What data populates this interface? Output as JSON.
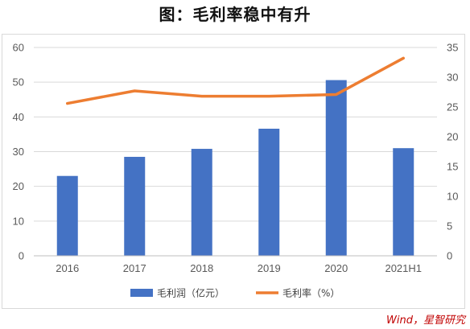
{
  "title": "图：毛利率稳中有升",
  "source": "Wind，星智研究",
  "chart_data": {
    "type": "bar",
    "categories": [
      "2016",
      "2017",
      "2018",
      "2019",
      "2020",
      "2021H1"
    ],
    "series": [
      {
        "name": "毛利润（亿元）",
        "type": "bar",
        "axis": "left",
        "color": "#4472C4",
        "values": [
          23.0,
          28.5,
          30.8,
          36.6,
          50.6,
          31.0
        ]
      },
      {
        "name": "毛利率（%）",
        "type": "line",
        "axis": "right",
        "color": "#ED7D31",
        "values": [
          25.6,
          27.7,
          26.8,
          26.8,
          27.1,
          33.2
        ]
      }
    ],
    "y_left": {
      "range": [
        0,
        60
      ],
      "ticks": [
        "0",
        "10",
        "20",
        "30",
        "40",
        "50",
        "60"
      ]
    },
    "y_right": {
      "range": [
        0,
        35
      ],
      "ticks": [
        "0",
        "5",
        "10",
        "15",
        "20",
        "25",
        "30",
        "35"
      ]
    },
    "grid": true,
    "legend_position": "bottom"
  }
}
